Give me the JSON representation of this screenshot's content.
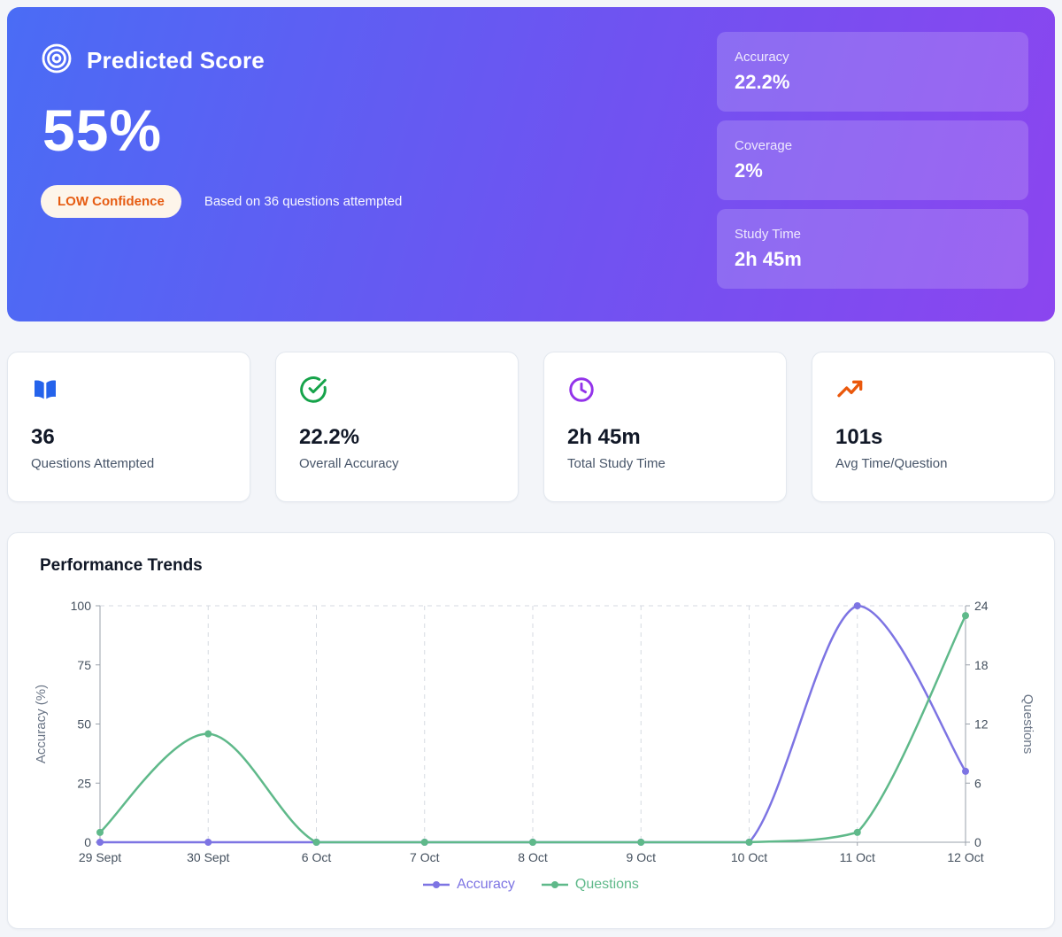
{
  "hero": {
    "title": "Predicted Score",
    "score": "55%",
    "confidence_badge": "LOW Confidence",
    "subtitle": "Based on 36 questions attempted",
    "stats": [
      {
        "label": "Accuracy",
        "value": "22.2%"
      },
      {
        "label": "Coverage",
        "value": "2%"
      },
      {
        "label": "Study Time",
        "value": "2h 45m"
      }
    ]
  },
  "summary_cards": [
    {
      "icon": "book-open-icon",
      "value": "36",
      "label": "Questions Attempted",
      "color": "#2563eb"
    },
    {
      "icon": "check-circle-icon",
      "value": "22.2%",
      "label": "Overall Accuracy",
      "color": "#16a34a"
    },
    {
      "icon": "clock-icon",
      "value": "2h 45m",
      "label": "Total Study Time",
      "color": "#9333ea"
    },
    {
      "icon": "trending-up-icon",
      "value": "101s",
      "label": "Avg Time/Question",
      "color": "#ea580c"
    }
  ],
  "trends": {
    "title": "Performance Trends"
  },
  "chart_data": {
    "type": "line",
    "title": "Performance Trends",
    "categories": [
      "29 Sept",
      "30 Sept",
      "6 Oct",
      "7 Oct",
      "8 Oct",
      "9 Oct",
      "10 Oct",
      "11 Oct",
      "12 Oct"
    ],
    "series": [
      {
        "name": "Accuracy",
        "axis": "left",
        "color": "#7d74e3",
        "values": [
          0,
          0,
          0,
          0,
          0,
          0,
          0,
          100,
          30
        ]
      },
      {
        "name": "Questions",
        "axis": "right",
        "color": "#5fb98a",
        "values": [
          1,
          11,
          0,
          0,
          0,
          0,
          0,
          1,
          23
        ]
      }
    ],
    "y_left": {
      "label": "Accuracy (%)",
      "min": 0,
      "max": 100,
      "ticks": [
        0,
        25,
        50,
        75,
        100
      ]
    },
    "y_right": {
      "label": "Questions",
      "min": 0,
      "max": 24,
      "ticks": [
        0,
        6,
        12,
        18,
        24
      ]
    },
    "grid": "dashed vertical gridlines plus dashed top line",
    "legend_position": "bottom"
  }
}
